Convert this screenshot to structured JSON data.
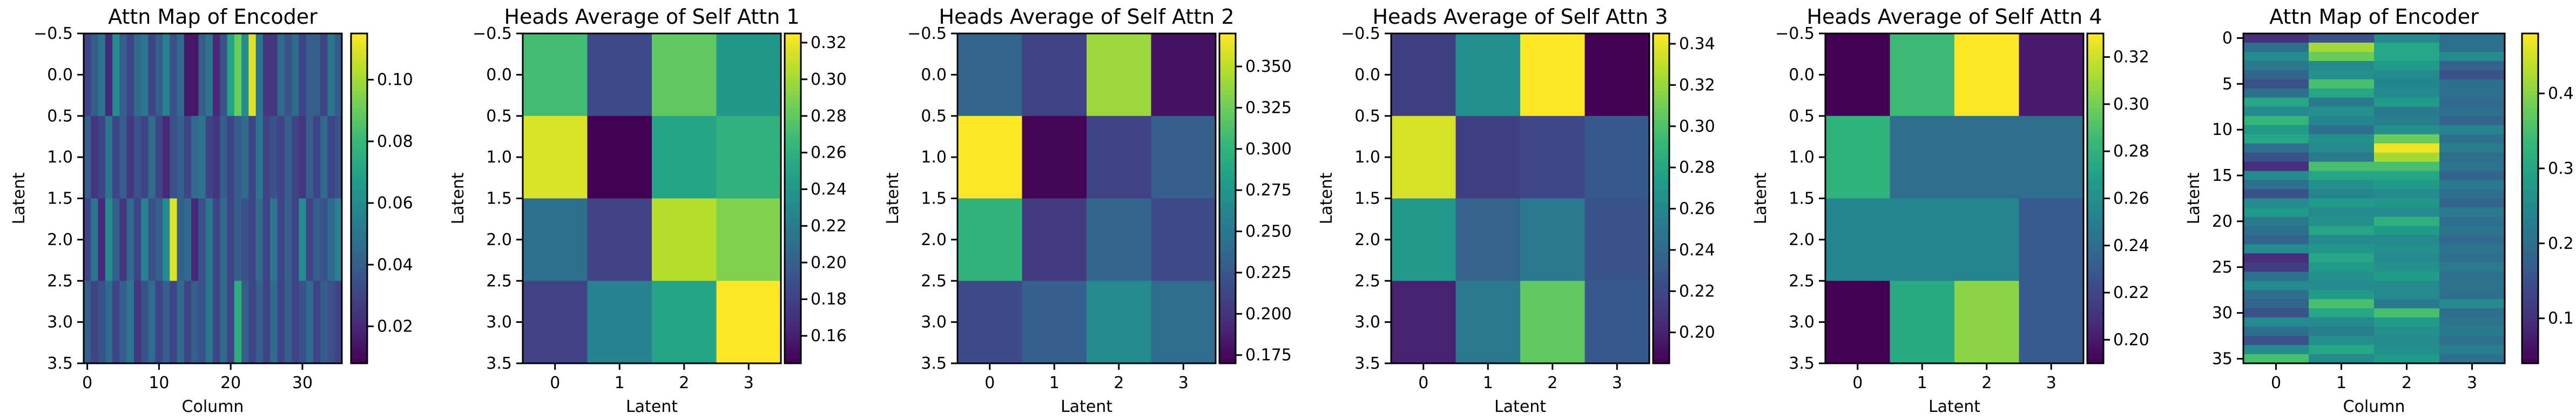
{
  "figure": {
    "colormap": "viridis",
    "colormap_stops": [
      "#440154",
      "#482878",
      "#3e4989",
      "#31688e",
      "#26828e",
      "#1f9e89",
      "#35b779",
      "#6ece58",
      "#b5de2b",
      "#fde725"
    ]
  },
  "chart_data": [
    {
      "type": "heatmap",
      "title": "Attn Map of Encoder",
      "xlabel": "Column",
      "ylabel": "Latent",
      "rows": 4,
      "cols": 36,
      "xticks": [
        0,
        10,
        20,
        30
      ],
      "yticks": [
        -0.5,
        0.0,
        0.5,
        1.0,
        1.5,
        2.0,
        2.5,
        3.0,
        3.5
      ],
      "colorbar_ticks": [
        0.02,
        0.04,
        0.06,
        0.08,
        0.1
      ],
      "clim": [
        0.008,
        0.115
      ],
      "values": [
        [
          0.03,
          0.04,
          0.05,
          0.02,
          0.06,
          0.04,
          0.03,
          0.045,
          0.05,
          0.03,
          0.04,
          0.055,
          0.035,
          0.045,
          0.015,
          0.015,
          0.04,
          0.05,
          0.02,
          0.035,
          0.07,
          0.09,
          0.06,
          0.11,
          0.05,
          0.025,
          0.025,
          0.045,
          0.035,
          0.045,
          0.03,
          0.04,
          0.04,
          0.03,
          0.05,
          0.04
        ],
        [
          0.04,
          0.025,
          0.03,
          0.05,
          0.03,
          0.04,
          0.025,
          0.035,
          0.03,
          0.045,
          0.03,
          0.02,
          0.035,
          0.04,
          0.03,
          0.045,
          0.05,
          0.03,
          0.025,
          0.04,
          0.03,
          0.04,
          0.045,
          0.03,
          0.05,
          0.03,
          0.035,
          0.03,
          0.04,
          0.03,
          0.025,
          0.04,
          0.03,
          0.045,
          0.03,
          0.035
        ],
        [
          0.03,
          0.05,
          0.02,
          0.06,
          0.04,
          0.025,
          0.045,
          0.03,
          0.055,
          0.035,
          0.04,
          0.06,
          0.11,
          0.04,
          0.045,
          0.02,
          0.035,
          0.05,
          0.03,
          0.045,
          0.03,
          0.04,
          0.035,
          0.03,
          0.045,
          0.03,
          0.05,
          0.03,
          0.04,
          0.03,
          0.06,
          0.03,
          0.04,
          0.035,
          0.045,
          0.055
        ],
        [
          0.04,
          0.03,
          0.035,
          0.045,
          0.03,
          0.04,
          0.05,
          0.025,
          0.035,
          0.045,
          0.03,
          0.04,
          0.03,
          0.045,
          0.03,
          0.04,
          0.035,
          0.05,
          0.03,
          0.045,
          0.03,
          0.075,
          0.04,
          0.03,
          0.04,
          0.03,
          0.045,
          0.03,
          0.04,
          0.03,
          0.035,
          0.045,
          0.03,
          0.04,
          0.035,
          0.03
        ]
      ]
    },
    {
      "type": "heatmap",
      "title": "Heads Average of Self Attn 1",
      "xlabel": "Latent",
      "ylabel": "Latent",
      "rows": 4,
      "cols": 4,
      "xticks": [
        0,
        1,
        2,
        3
      ],
      "yticks": [
        -0.5,
        0.0,
        0.5,
        1.0,
        1.5,
        2.0,
        2.5,
        3.0,
        3.5
      ],
      "colorbar_ticks": [
        0.16,
        0.18,
        0.2,
        0.22,
        0.24,
        0.26,
        0.28,
        0.3,
        0.32
      ],
      "clim": [
        0.145,
        0.325
      ],
      "values": [
        [
          0.27,
          0.185,
          0.28,
          0.24
        ],
        [
          0.315,
          0.145,
          0.25,
          0.26
        ],
        [
          0.21,
          0.18,
          0.305,
          0.29
        ],
        [
          0.18,
          0.225,
          0.25,
          0.325
        ]
      ]
    },
    {
      "type": "heatmap",
      "title": "Heads Average of Self Attn 2",
      "xlabel": "Latent",
      "ylabel": "Latent",
      "rows": 4,
      "cols": 4,
      "xticks": [
        0,
        1,
        2,
        3
      ],
      "yticks": [
        -0.5,
        0.0,
        0.5,
        1.0,
        1.5,
        2.0,
        2.5,
        3.0,
        3.5
      ],
      "colorbar_ticks": [
        0.175,
        0.2,
        0.225,
        0.25,
        0.275,
        0.3,
        0.325,
        0.35
      ],
      "clim": [
        0.17,
        0.37
      ],
      "values": [
        [
          0.235,
          0.21,
          0.34,
          0.18
        ],
        [
          0.37,
          0.172,
          0.21,
          0.23
        ],
        [
          0.3,
          0.205,
          0.235,
          0.215
        ],
        [
          0.215,
          0.23,
          0.265,
          0.24
        ]
      ]
    },
    {
      "type": "heatmap",
      "title": "Heads Average of Self Attn 3",
      "xlabel": "Latent",
      "ylabel": "Latent",
      "rows": 4,
      "cols": 4,
      "xticks": [
        0,
        1,
        2,
        3
      ],
      "yticks": [
        -0.5,
        0.0,
        0.5,
        1.0,
        1.5,
        2.0,
        2.5,
        3.0,
        3.5
      ],
      "colorbar_ticks": [
        0.2,
        0.22,
        0.24,
        0.26,
        0.28,
        0.3,
        0.32,
        0.34
      ],
      "clim": [
        0.185,
        0.345
      ],
      "values": [
        [
          0.215,
          0.265,
          0.345,
          0.185
        ],
        [
          0.335,
          0.215,
          0.22,
          0.23
        ],
        [
          0.27,
          0.235,
          0.25,
          0.225
        ],
        [
          0.2,
          0.25,
          0.305,
          0.23
        ]
      ]
    },
    {
      "type": "heatmap",
      "title": "Heads Average of Self Attn 4",
      "xlabel": "Latent",
      "ylabel": "Latent",
      "rows": 4,
      "cols": 4,
      "xticks": [
        0,
        1,
        2,
        3
      ],
      "yticks": [
        -0.5,
        0.0,
        0.5,
        1.0,
        1.5,
        2.0,
        2.5,
        3.0,
        3.5
      ],
      "colorbar_ticks": [
        0.2,
        0.22,
        0.24,
        0.26,
        0.28,
        0.3,
        0.32
      ],
      "clim": [
        0.19,
        0.33
      ],
      "values": [
        [
          0.19,
          0.285,
          0.33,
          0.2
        ],
        [
          0.28,
          0.24,
          0.24,
          0.24
        ],
        [
          0.255,
          0.255,
          0.255,
          0.23
        ],
        [
          0.19,
          0.275,
          0.305,
          0.23
        ]
      ]
    },
    {
      "type": "heatmap",
      "title": "Attn Map of Encoder",
      "xlabel": "Column",
      "ylabel": "Latent",
      "rows": 36,
      "cols": 4,
      "xticks": [
        0,
        1,
        2,
        3
      ],
      "yticks": [
        0,
        5,
        10,
        15,
        20,
        25,
        30,
        35
      ],
      "colorbar_ticks": [
        0.1,
        0.2,
        0.3,
        0.4
      ],
      "clim": [
        0.04,
        0.48
      ],
      "values": [
        [
          0.1,
          0.15,
          0.25,
          0.2
        ],
        [
          0.2,
          0.42,
          0.3,
          0.2
        ],
        [
          0.25,
          0.38,
          0.3,
          0.25
        ],
        [
          0.22,
          0.25,
          0.28,
          0.18
        ],
        [
          0.18,
          0.26,
          0.25,
          0.15
        ],
        [
          0.15,
          0.35,
          0.24,
          0.2
        ],
        [
          0.2,
          0.3,
          0.25,
          0.2
        ],
        [
          0.3,
          0.22,
          0.28,
          0.19
        ],
        [
          0.25,
          0.26,
          0.22,
          0.2
        ],
        [
          0.33,
          0.24,
          0.23,
          0.18
        ],
        [
          0.28,
          0.2,
          0.26,
          0.24
        ],
        [
          0.3,
          0.26,
          0.38,
          0.2
        ],
        [
          0.2,
          0.25,
          0.47,
          0.23
        ],
        [
          0.15,
          0.22,
          0.42,
          0.2
        ],
        [
          0.1,
          0.35,
          0.35,
          0.21
        ],
        [
          0.25,
          0.3,
          0.3,
          0.18
        ],
        [
          0.2,
          0.26,
          0.28,
          0.22
        ],
        [
          0.15,
          0.24,
          0.25,
          0.2
        ],
        [
          0.25,
          0.28,
          0.27,
          0.18
        ],
        [
          0.28,
          0.25,
          0.25,
          0.22
        ],
        [
          0.22,
          0.26,
          0.32,
          0.2
        ],
        [
          0.2,
          0.3,
          0.28,
          0.21
        ],
        [
          0.18,
          0.25,
          0.25,
          0.19
        ],
        [
          0.25,
          0.27,
          0.26,
          0.21
        ],
        [
          0.1,
          0.3,
          0.25,
          0.2
        ],
        [
          0.12,
          0.28,
          0.26,
          0.22
        ],
        [
          0.2,
          0.26,
          0.28,
          0.2
        ],
        [
          0.25,
          0.25,
          0.25,
          0.21
        ],
        [
          0.2,
          0.28,
          0.25,
          0.2
        ],
        [
          0.18,
          0.35,
          0.22,
          0.25
        ],
        [
          0.15,
          0.3,
          0.35,
          0.2
        ],
        [
          0.25,
          0.25,
          0.28,
          0.21
        ],
        [
          0.2,
          0.23,
          0.26,
          0.22
        ],
        [
          0.15,
          0.26,
          0.25,
          0.2
        ],
        [
          0.25,
          0.3,
          0.26,
          0.23
        ],
        [
          0.35,
          0.25,
          0.28,
          0.2
        ]
      ]
    }
  ]
}
